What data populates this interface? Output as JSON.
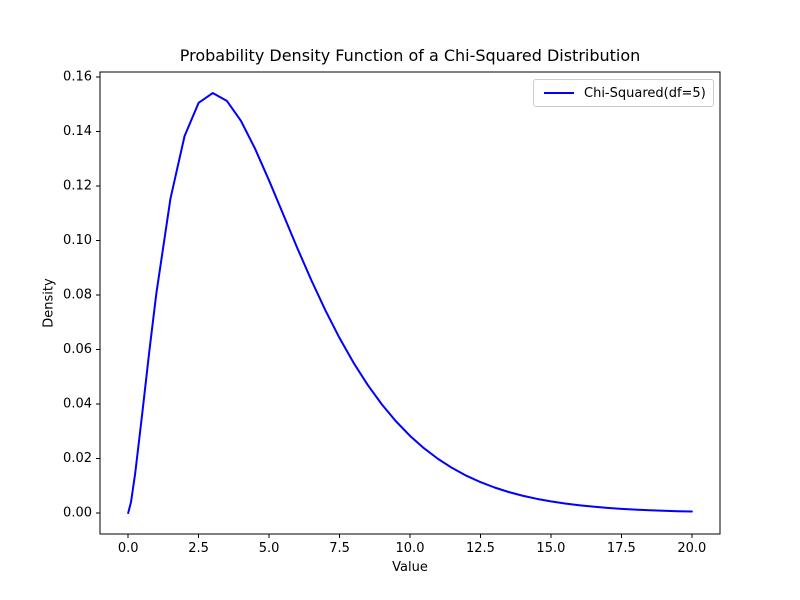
{
  "figure": {
    "background": "#ffffff"
  },
  "colors": {
    "line": "#0000ff",
    "spine": "#000000",
    "text": "#000000",
    "legend_border": "#cccccc"
  },
  "chart_data": {
    "type": "line",
    "title": "Probability Density Function of a Chi-Squared Distribution",
    "xlabel": "Value",
    "ylabel": "Density",
    "xlim": [
      -1,
      21
    ],
    "ylim": [
      -0.0077,
      0.1619
    ],
    "x_ticks": [
      0,
      2.5,
      5,
      7.5,
      10,
      12.5,
      15,
      17.5,
      20
    ],
    "x_tick_labels": [
      "0.0",
      "2.5",
      "5.0",
      "7.5",
      "10.0",
      "12.5",
      "15.0",
      "17.5",
      "20.0"
    ],
    "y_ticks": [
      0.0,
      0.02,
      0.04,
      0.06,
      0.08,
      0.1,
      0.12,
      0.14,
      0.16
    ],
    "y_tick_labels": [
      "0.00",
      "0.02",
      "0.04",
      "0.06",
      "0.08",
      "0.10",
      "0.12",
      "0.14",
      "0.16"
    ],
    "grid": false,
    "legend_position": "upper right",
    "series": [
      {
        "name": "Chi-Squared(df=5)",
        "color": "#0000ff",
        "line_width": 2,
        "x": [
          0,
          0.1,
          0.25,
          0.5,
          0.75,
          1,
          1.5,
          2,
          2.5,
          3,
          3.5,
          4,
          4.5,
          5,
          5.5,
          6,
          6.5,
          7,
          7.5,
          8,
          8.5,
          9,
          9.5,
          10,
          10.5,
          11,
          11.5,
          12,
          12.5,
          13,
          13.5,
          14,
          14.5,
          15,
          15.5,
          16,
          16.5,
          17,
          17.5,
          18,
          18.5,
          19,
          19.5,
          20
        ],
        "y": [
          0,
          0.004,
          0.01467,
          0.03662,
          0.05937,
          0.08066,
          0.1154,
          0.13837,
          0.1506,
          0.15418,
          0.15131,
          0.14398,
          0.1338,
          0.12204,
          0.10966,
          0.0973,
          0.08545,
          0.07437,
          0.06424,
          0.05511,
          0.04701,
          0.03989,
          0.03369,
          0.02833,
          0.02374,
          0.01983,
          0.01651,
          0.0137,
          0.01135,
          0.00937,
          0.00772,
          0.00635,
          0.00521,
          0.00427,
          0.0035,
          0.00286,
          0.00233,
          0.0019,
          0.00154,
          0.00125,
          0.00102,
          0.00082,
          0.00067,
          0.00054
        ]
      }
    ]
  }
}
